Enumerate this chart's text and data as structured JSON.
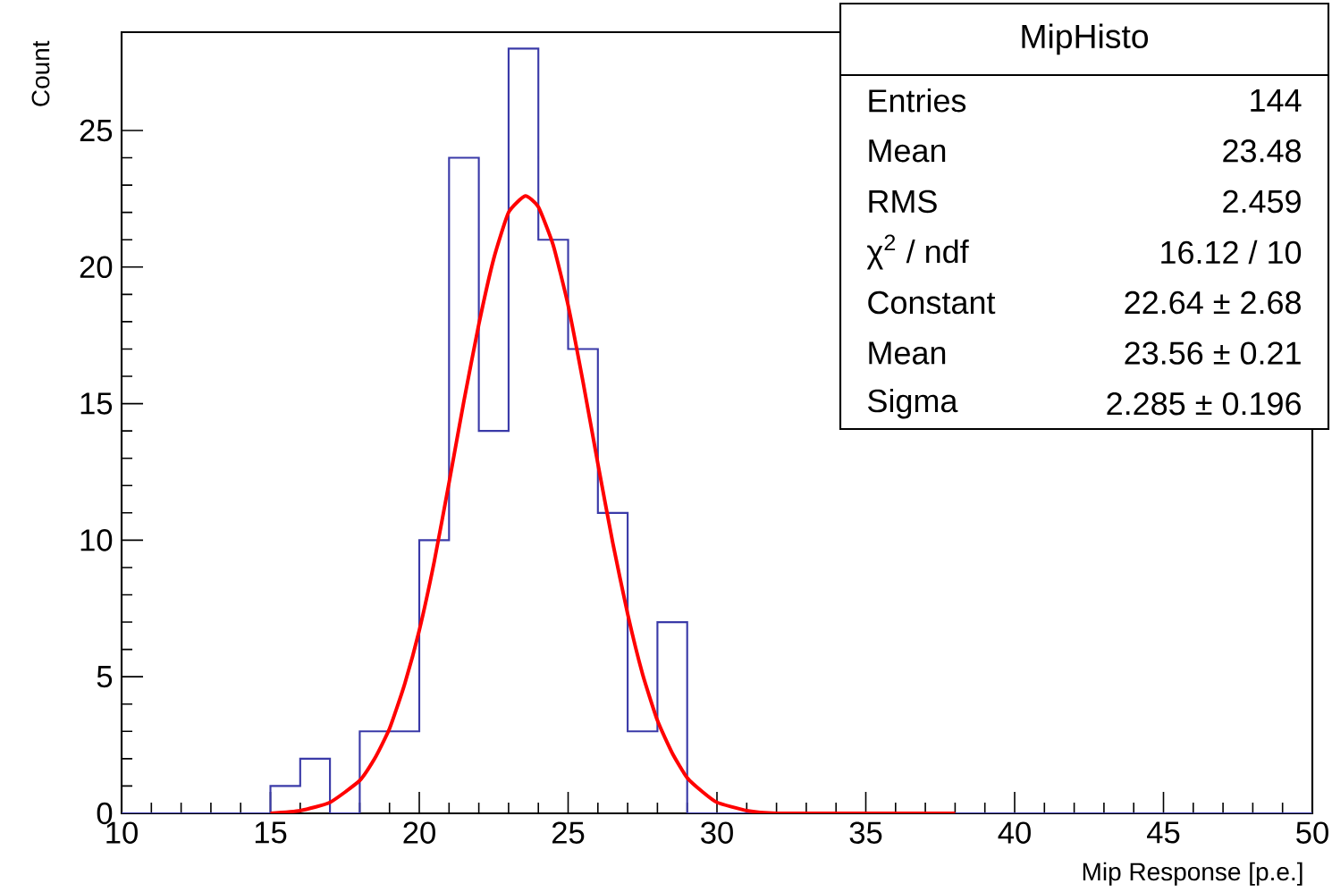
{
  "chart_data": {
    "type": "histogram",
    "title": "MipHisto",
    "xlabel": "Mip Response [p.e.]",
    "ylabel": "Count",
    "bins": [
      10,
      11,
      12,
      13,
      14,
      15,
      16,
      17,
      18,
      19,
      20,
      21,
      22,
      23,
      24,
      25,
      26,
      27,
      28,
      29,
      30,
      31,
      32,
      33,
      34,
      35,
      36,
      37,
      38,
      39,
      40,
      41,
      42,
      43,
      44,
      45,
      46,
      47,
      48,
      49,
      50
    ],
    "series": [
      {
        "type": "histogram",
        "color": "#3a3aa8",
        "values": [
          0,
          0,
          0,
          0,
          0,
          1,
          2,
          0,
          3,
          3,
          10,
          24,
          14,
          28,
          21,
          17,
          11,
          3,
          7,
          0,
          0,
          0,
          0,
          0,
          0,
          0,
          0,
          0,
          0,
          0,
          0,
          0,
          0,
          0,
          0,
          0,
          0,
          0,
          0,
          0
        ]
      },
      {
        "type": "line",
        "color": "#ff0000",
        "x": [
          15,
          16,
          17,
          18,
          18.5,
          19,
          19.5,
          20,
          20.5,
          21,
          21.5,
          22,
          22.5,
          23,
          23.56,
          24,
          24.5,
          25,
          25.5,
          26,
          26.5,
          27,
          27.5,
          28,
          28.5,
          29,
          29.5,
          30,
          31,
          32,
          34,
          38
        ],
        "values": [
          0.0,
          0.1,
          0.4,
          1.2,
          2.0,
          3.1,
          4.7,
          6.7,
          9.2,
          12.1,
          15.1,
          17.9,
          20.3,
          22.0,
          22.6,
          22.2,
          20.8,
          18.6,
          15.8,
          12.8,
          9.9,
          7.3,
          5.1,
          3.4,
          2.2,
          1.3,
          0.8,
          0.4,
          0.1,
          0.0,
          0.0,
          0.0
        ]
      }
    ],
    "xlim": [
      10,
      50
    ],
    "ylim": [
      0,
      28.6
    ],
    "xticks": [
      10,
      15,
      20,
      25,
      30,
      35,
      40,
      45,
      50
    ],
    "yticks": [
      0,
      5,
      10,
      15,
      20,
      25
    ],
    "annotations": [
      "Entries",
      "144",
      "Mean",
      "23.48",
      "RMS",
      "2.459",
      "χ$^{2}$ / ndf",
      "16.12 / 10",
      "Constant",
      "22.64 ± 2.68",
      "Mean",
      "23.56 ± 0.21",
      "Sigma",
      "2.285 ± 0.196"
    ],
    "grid": false
  }
}
